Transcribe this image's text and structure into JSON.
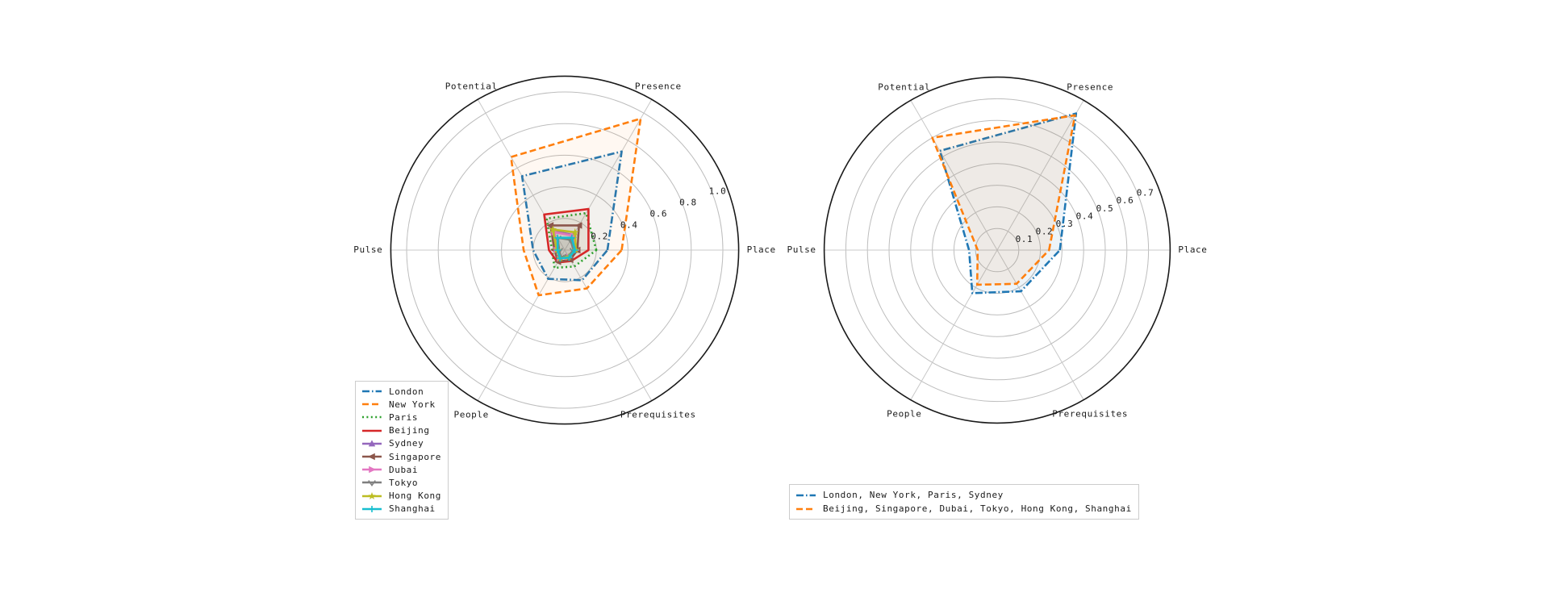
{
  "figure": {
    "background": "#ffffff"
  },
  "grid": {
    "circle_color": "#bdbdbd",
    "spoke_color": "#c8c8c8",
    "outline_color": "#1a1a1a"
  },
  "chart_data": [
    {
      "type": "radar",
      "id": "left",
      "categories": [
        "Place",
        "Presence",
        "Potential",
        "Pulse",
        "People",
        "Prerequisites"
      ],
      "angles_deg": [
        0,
        60,
        120,
        180,
        240,
        300
      ],
      "r_ticks": [
        0.2,
        0.4,
        0.6,
        0.8,
        1.0
      ],
      "tick_labels": [
        "0.2",
        "0.4",
        "0.6",
        "0.8",
        "1.0"
      ],
      "r_axis_max": 1.1,
      "legend_position": "bottom-left",
      "series": [
        {
          "name": "London",
          "color": "#1f77b4",
          "line": "dashdot",
          "marker": "none",
          "values": [
            0.27,
            0.72,
            0.54,
            0.2,
            0.21,
            0.22
          ]
        },
        {
          "name": "New York",
          "color": "#ff7f0e",
          "line": "dashed",
          "marker": "none",
          "values": [
            0.36,
            0.96,
            0.68,
            0.26,
            0.33,
            0.28
          ]
        },
        {
          "name": "Paris",
          "color": "#2ca02c",
          "line": "dotted",
          "marker": "none",
          "values": [
            0.2,
            0.27,
            0.23,
            0.08,
            0.13,
            0.12
          ]
        },
        {
          "name": "Beijing",
          "color": "#d62728",
          "line": "solid",
          "marker": "none",
          "values": [
            0.15,
            0.3,
            0.26,
            0.1,
            0.09,
            0.08
          ]
        },
        {
          "name": "Sydney",
          "color": "#9467bd",
          "line": "solid",
          "marker": "triangle-up",
          "values": [
            0.08,
            0.11,
            0.14,
            0.05,
            0.06,
            0.05
          ]
        },
        {
          "name": "Singapore",
          "color": "#8c564b",
          "line": "solid",
          "marker": "triangle-left",
          "values": [
            0.08,
            0.18,
            0.18,
            0.065,
            0.085,
            0.07
          ]
        },
        {
          "name": "Dubai",
          "color": "#e377c2",
          "line": "solid",
          "marker": "triangle-right",
          "values": [
            0.07,
            0.105,
            0.13,
            0.05,
            0.06,
            0.05
          ]
        },
        {
          "name": "Tokyo",
          "color": "#7f7f7f",
          "line": "solid",
          "marker": "triangle-down",
          "values": [
            0.055,
            0.075,
            0.09,
            0.035,
            0.05,
            0.045
          ]
        },
        {
          "name": "Hong Kong",
          "color": "#bcbd22",
          "line": "solid",
          "marker": "star",
          "values": [
            0.07,
            0.13,
            0.15,
            0.05,
            0.06,
            0.05
          ]
        },
        {
          "name": "Shanghai",
          "color": "#17becf",
          "line": "solid",
          "marker": "plus",
          "values": [
            0.065,
            0.09,
            0.09,
            0.045,
            0.06,
            0.055
          ]
        }
      ]
    },
    {
      "type": "radar",
      "id": "right",
      "categories": [
        "Place",
        "Presence",
        "Potential",
        "Pulse",
        "People",
        "Prerequisites"
      ],
      "angles_deg": [
        0,
        60,
        120,
        180,
        240,
        300
      ],
      "r_ticks": [
        0.1,
        0.2,
        0.3,
        0.4,
        0.5,
        0.6,
        0.7
      ],
      "tick_labels": [
        "0.1",
        "0.2",
        "0.3",
        "0.4",
        "0.5",
        "0.6",
        "0.7"
      ],
      "r_axis_max": 0.8,
      "legend_position": "bottom-center",
      "series": [
        {
          "name": "London, New York, Paris, Sydney",
          "color": "#1f77b4",
          "line": "dashdot",
          "marker": "none",
          "values": [
            0.29,
            0.73,
            0.53,
            0.13,
            0.23,
            0.22
          ]
        },
        {
          "name": "Beijing, Singapore, Dubai, Tokyo, Hong Kong, Shanghai",
          "color": "#ff7f0e",
          "line": "dashed",
          "marker": "none",
          "values": [
            0.24,
            0.72,
            0.6,
            0.09,
            0.185,
            0.18
          ]
        }
      ]
    }
  ]
}
